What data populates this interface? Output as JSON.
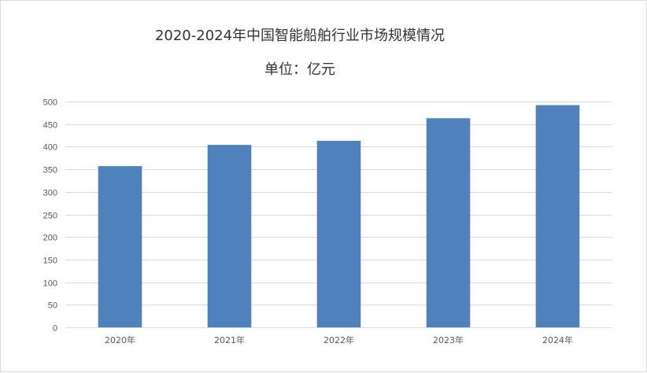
{
  "chart_data": {
    "type": "bar",
    "title": "2020-2024年中国智能船舶行业市场规模情况",
    "subtitle": "单位：亿元",
    "categories": [
      "2020年",
      "2021年",
      "2022年",
      "2023年",
      "2024年"
    ],
    "values": [
      357,
      404,
      413,
      463,
      492
    ],
    "ylim": [
      0,
      500
    ],
    "y_ticks": [
      0,
      50,
      100,
      150,
      200,
      250,
      300,
      350,
      400,
      450,
      500
    ],
    "grid": true,
    "bar_color": "#4f81bd",
    "gridline_color": "#d9d9d9"
  }
}
